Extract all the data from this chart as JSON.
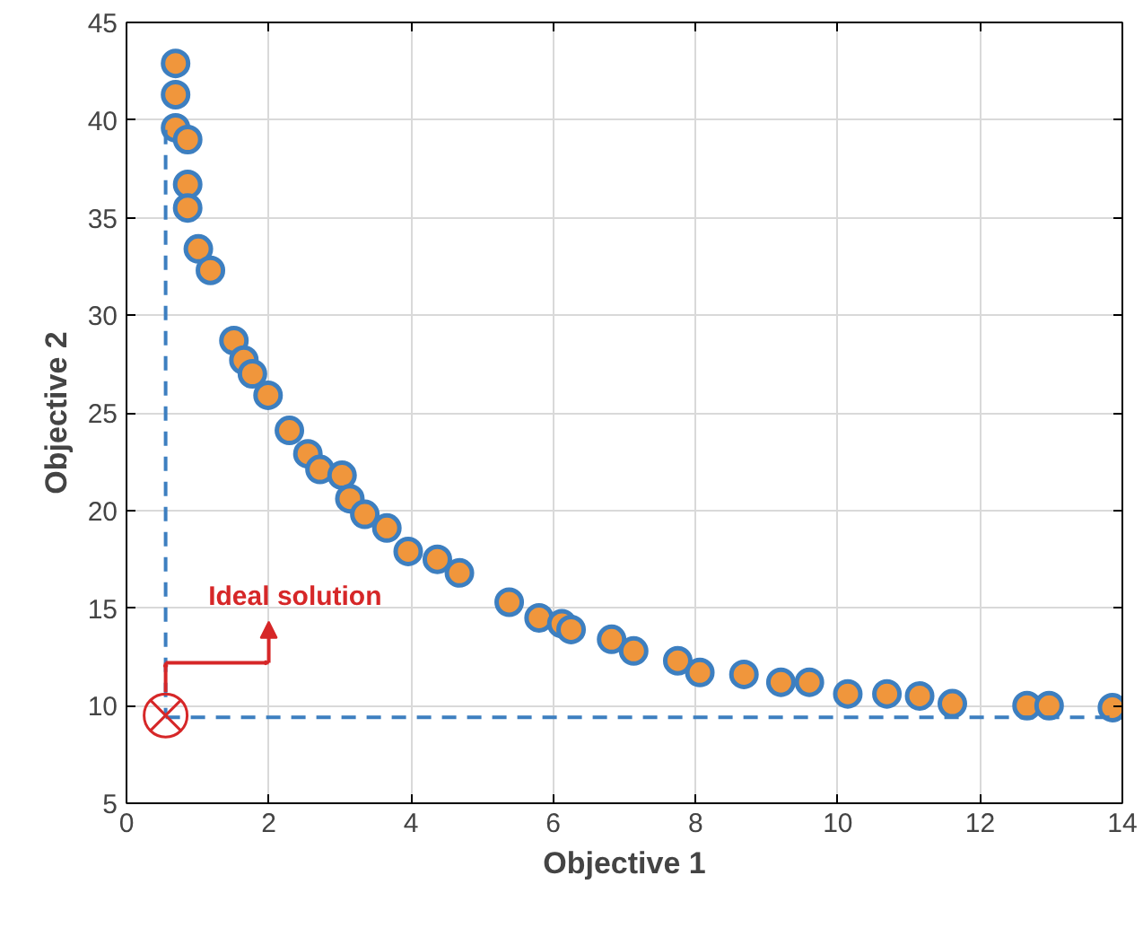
{
  "chart_data": {
    "type": "scatter",
    "xlabel": "Objective 1",
    "ylabel": "Objective 2",
    "xlim": [
      0,
      14
    ],
    "ylim": [
      5,
      45
    ],
    "xticks": [
      0,
      2,
      4,
      6,
      8,
      10,
      12,
      14
    ],
    "yticks": [
      5,
      10,
      15,
      20,
      25,
      30,
      35,
      40,
      45
    ],
    "grid": true,
    "series": [
      {
        "marker": "circle",
        "color": "#f0963c",
        "x": [
          0.69,
          0.69,
          0.69,
          0.86,
          0.86,
          0.86,
          1.01,
          1.18,
          1.51,
          1.65,
          1.77,
          1.99,
          2.29,
          2.55,
          2.72,
          3.03,
          3.14,
          3.35,
          3.66,
          3.96,
          4.37,
          4.68,
          5.38,
          5.8,
          6.12,
          6.25,
          6.82,
          7.13,
          7.75,
          8.06,
          8.68,
          9.2,
          9.6,
          10.14,
          10.69,
          11.15,
          11.61,
          12.66,
          12.97,
          13.86
        ],
        "values": [
          42.9,
          41.3,
          39.6,
          39.0,
          36.7,
          35.5,
          33.4,
          32.3,
          28.7,
          27.7,
          27.0,
          25.9,
          24.1,
          22.9,
          22.1,
          21.8,
          20.6,
          19.8,
          19.1,
          17.9,
          17.5,
          16.8,
          15.3,
          14.5,
          14.2,
          13.9,
          13.4,
          12.8,
          12.3,
          11.7,
          11.6,
          11.2,
          11.2,
          10.6,
          10.6,
          10.5,
          10.1,
          10.0,
          10.0,
          9.9
        ]
      },
      {
        "type": "line",
        "line_style": "dashed",
        "color": "#3d7fc0",
        "x": [
          0.55,
          0.55
        ],
        "values": [
          39.5,
          9.4
        ]
      },
      {
        "type": "line",
        "line_style": "dashed",
        "color": "#3d7fc0",
        "x": [
          0.55,
          14
        ],
        "values": [
          9.4,
          9.4
        ]
      },
      {
        "type": "scatter",
        "marker": "circle",
        "color": "#d62728",
        "x": [
          0.55
        ],
        "values": [
          9.5
        ]
      }
    ],
    "annotations": [
      "Ideal solution"
    ]
  }
}
